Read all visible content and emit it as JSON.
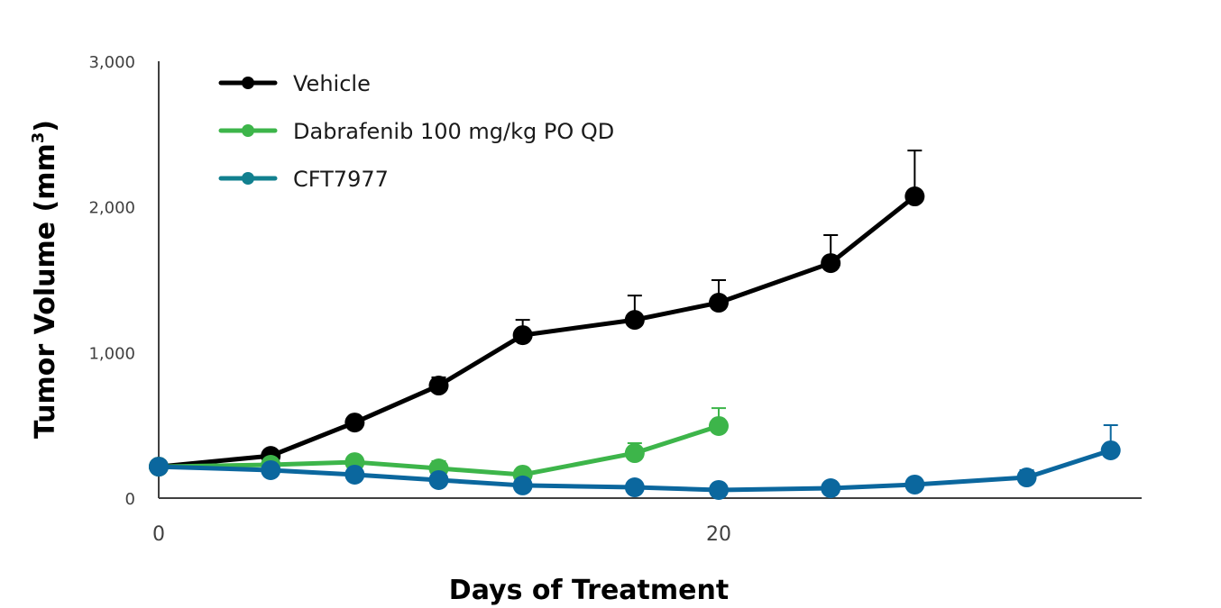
{
  "chart_data": {
    "type": "line",
    "title": "",
    "xlabel": "Days of Treatment",
    "ylabel": "Tumor Volume (mm",
    "ylabel_superscript": "3",
    "ylabel_suffix": ")",
    "xlim": [
      0,
      35
    ],
    "ylim": [
      0,
      3000
    ],
    "x_ticks": [
      0,
      20
    ],
    "x_tick_labels": [
      "0",
      "20"
    ],
    "y_ticks": [
      0,
      1000,
      2000,
      3000
    ],
    "y_tick_labels": [
      "0",
      "1,000",
      "2,000",
      "3,000"
    ],
    "grid": false,
    "legend_position": "top-left",
    "series": [
      {
        "name": "Vehicle",
        "color": "#000000",
        "legend_color": "#000000",
        "x": [
          0,
          4,
          7,
          10,
          13,
          17,
          20,
          24,
          27
        ],
        "y": [
          216,
          290,
          519,
          773,
          1119,
          1224,
          1342,
          1614,
          2072
        ],
        "error_upper": [
          null,
          null,
          null,
          829,
          1224,
          1391,
          1497,
          1806,
          2387
        ]
      },
      {
        "name": "Dabrafenib 100 mg/kg PO QD",
        "color": "#3db54a",
        "legend_color": "#3db54a",
        "x": [
          0,
          4,
          7,
          10,
          13,
          17,
          20
        ],
        "y": [
          216,
          229,
          247,
          204,
          161,
          309,
          495
        ],
        "error_upper": [
          null,
          null,
          null,
          254,
          null,
          377,
          618
        ]
      },
      {
        "name": "CFT7977",
        "color": "#0b679e",
        "legend_color": "#12808f",
        "x": [
          0,
          4,
          7,
          10,
          13,
          17,
          20,
          24,
          27,
          31,
          34
        ],
        "y": [
          216,
          192,
          161,
          124,
          87,
          74,
          56,
          68,
          93,
          142,
          328
        ],
        "error_upper": [
          null,
          null,
          null,
          null,
          null,
          null,
          null,
          null,
          null,
          192,
          501
        ]
      }
    ]
  }
}
